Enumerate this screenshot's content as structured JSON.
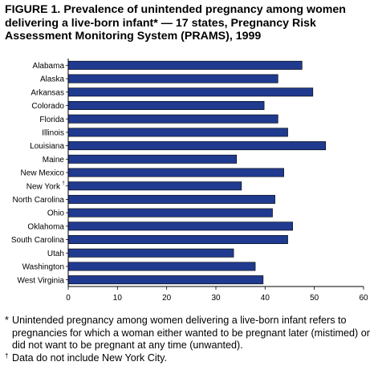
{
  "title": "FIGURE 1. Prevalence of unintended pregnancy among women delivering a live-born infant* — 17 states, Pregnancy Risk Assessment Monitoring System (PRAMS), 1999",
  "chart_data": {
    "type": "bar",
    "orientation": "horizontal",
    "categories": [
      "Alabama",
      "Alaska",
      "Arkansas",
      "Colorado",
      "Florida",
      "Illinois",
      "Louisiana",
      "Maine",
      "New Mexico",
      "New York",
      "North Carolina",
      "Ohio",
      "Oklahoma",
      "South Carolina",
      "Utah",
      "Washington",
      "West Virginia"
    ],
    "category_marks": [
      "",
      "",
      "",
      "",
      "",
      "",
      "",
      "",
      "",
      "†",
      "",
      "",
      "",
      "",
      "",
      "",
      ""
    ],
    "values": [
      47.5,
      42.6,
      49.7,
      39.8,
      42.6,
      44.6,
      52.3,
      34.2,
      43.8,
      35.2,
      42.0,
      41.5,
      45.6,
      44.6,
      33.6,
      38.0,
      39.6
    ],
    "xlim": [
      0,
      60
    ],
    "xticks": [
      0,
      10,
      20,
      30,
      40,
      50,
      60
    ],
    "xlabel": "",
    "ylabel": "",
    "grid": false,
    "legend": "none",
    "bar_color": "#1f3a8f"
  },
  "footnotes": [
    {
      "mark": "*",
      "text": "Unintended pregnancy among women delivering a live-born infant refers to pregnancies for which a woman either wanted to be pregnant later (mistimed) or did not want to be pregnant at any time (unwanted)."
    },
    {
      "mark": "†",
      "text": "Data do not include New York City."
    }
  ]
}
